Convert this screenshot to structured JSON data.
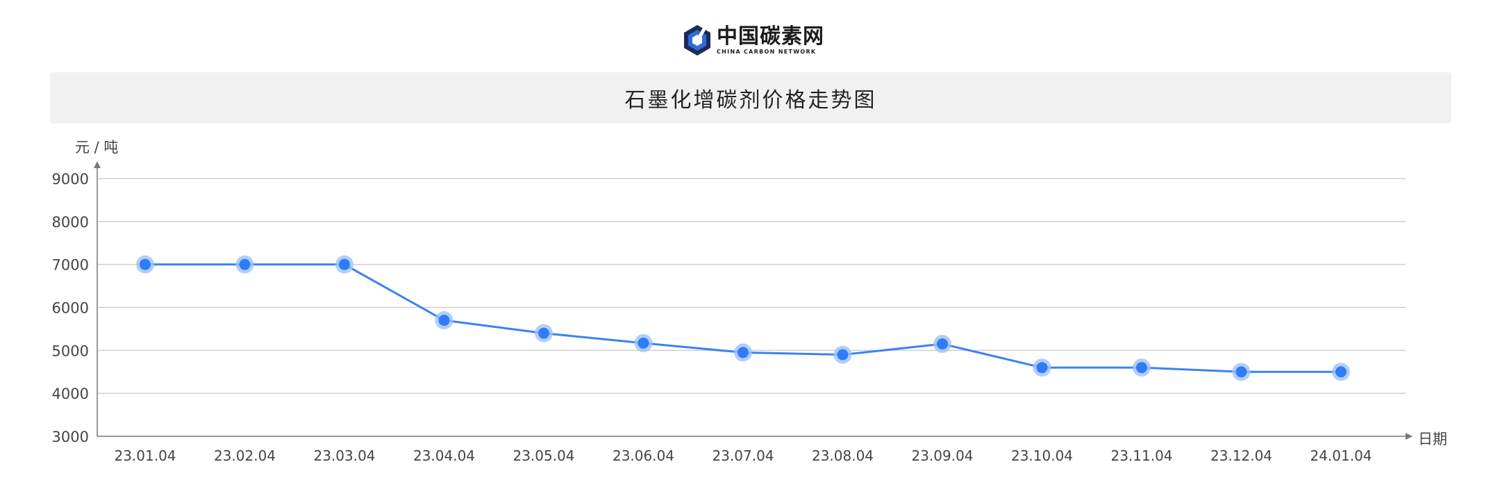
{
  "logo": {
    "name": "中国碳素网",
    "subtitle": "CHINA CARBON NETWORK",
    "icon": "hexagon-logo-icon",
    "colors": {
      "blue": "#2b6fd6",
      "dark": "#1d2a5a"
    }
  },
  "chart_data": {
    "type": "line",
    "title": "石墨化增碳剂价格走势图",
    "xlabel": "日期",
    "ylabel": "元 / 吨",
    "categories": [
      "23.01.04",
      "23.02.04",
      "23.03.04",
      "23.04.04",
      "23.05.04",
      "23.06.04",
      "23.07.04",
      "23.08.04",
      "23.09.04",
      "23.10.04",
      "23.11.04",
      "23.12.04",
      "24.01.04"
    ],
    "series": [
      {
        "values": [
          7000,
          7000,
          7000,
          5700,
          5400,
          5170,
          4950,
          4900,
          5150,
          4600,
          4600,
          4500,
          4500
        ]
      }
    ],
    "ylim": [
      3000,
      9000
    ],
    "yticks": [
      3000,
      4000,
      5000,
      6000,
      7000,
      8000,
      9000
    ],
    "grid": true,
    "legend": "none",
    "colors": {
      "line": "#3b82f0",
      "point": "#2f7cf6",
      "point_halo": "#9ec3f5",
      "grid": "#cfcfcf",
      "axis": "#777777"
    }
  }
}
